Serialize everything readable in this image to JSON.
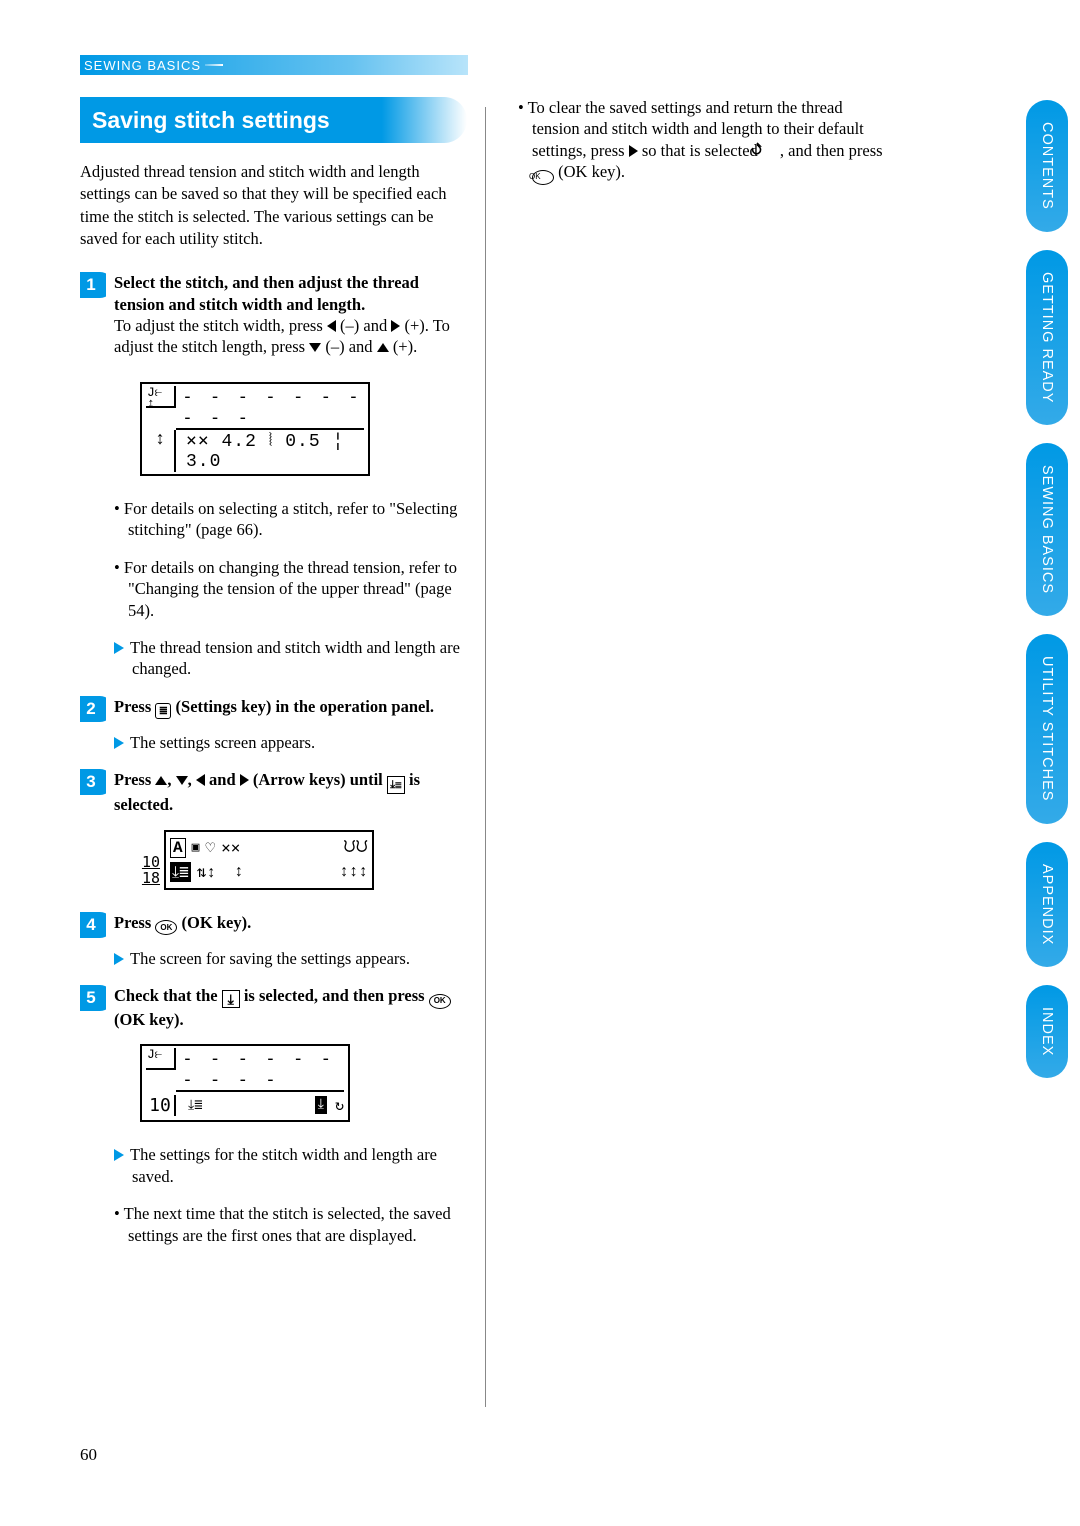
{
  "header": {
    "section": "SEWING BASICS"
  },
  "title": "Saving stitch settings",
  "intro": "Adjusted thread tension and stitch width and length settings can be saved so that they will be specified each time the stitch is selected. The various settings can be saved for each utility stitch.",
  "steps": {
    "s1": {
      "title": "Select the stitch, and then adjust the thread tension and stitch width and length.",
      "body_a": "To adjust the stitch width, press ",
      "body_b": " (–) and ",
      "body_c": " (+). To adjust the stitch length, press ",
      "body_d": " (–) and ",
      "body_e": " (+)."
    },
    "s1_lcd": {
      "line2": "⨯⨯ 4.2 ⦚ 0.5 ¦ 3.0"
    },
    "s1_bullet1": "For details on selecting a stitch, refer to \"Selecting stitching\" (page 66).",
    "s1_bullet2": "For details on changing the thread tension, refer to \"Changing the tension of the upper thread\" (page 54).",
    "s1_arrow": "The thread tension and stitch width and length are changed.",
    "s2": {
      "title_a": "Press ",
      "title_b": " (Settings key) in the operation panel.",
      "arrow": "The settings screen appears."
    },
    "s3": {
      "title_a": "Press ",
      "title_mid": ", ",
      "title_and": " and ",
      "title_until": " (Arrow keys) until ",
      "title_end": " is selected."
    },
    "s3_lcd": {
      "side": "10\n18"
    },
    "s4": {
      "title_a": "Press ",
      "title_b": " (OK key).",
      "arrow": "The screen for saving the settings appears."
    },
    "s5": {
      "title_a": "Check that the ",
      "title_b": " is selected, and then press ",
      "title_c": " (OK key)."
    },
    "s5_lcd": {
      "side": "10"
    },
    "s5_arrow": "The settings for the stitch width and length are saved.",
    "s5_bullet": "The next time that the stitch is selected, the saved settings are the first ones that are displayed."
  },
  "right": {
    "bullet_a": "To clear the saved settings and return the thread tension and  stitch width and length to their default settings, press ",
    "bullet_b": " so that is selected ",
    "bullet_c": ", and then press ",
    "bullet_d": " (OK key)."
  },
  "page_number": "60",
  "tabs": [
    "CONTENTS",
    "GETTING READY",
    "SEWING BASICS",
    "UTILITY STITCHES",
    "APPENDIX",
    "INDEX"
  ],
  "colors": {
    "accent": "#0099e5",
    "text": "#000000",
    "white": "#ffffff"
  }
}
